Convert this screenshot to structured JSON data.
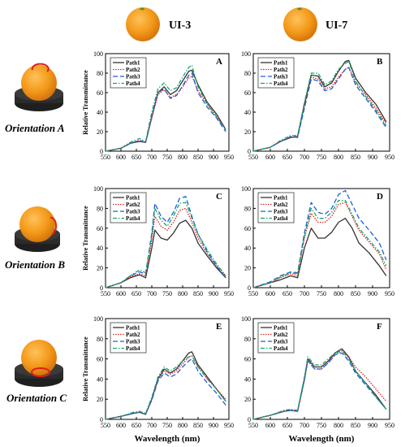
{
  "columns": [
    "UI-3",
    "UI-7"
  ],
  "rows": [
    "Orientation A",
    "Orientation B",
    "Orientation C"
  ],
  "legend": [
    "Path1",
    "Path2",
    "Path3",
    "Path4"
  ],
  "colors": {
    "Path1": "#333333",
    "Path2": "#e02020",
    "Path3": "#1f5fd6",
    "Path4": "#15a86a",
    "orange": "#f39a1a",
    "stand": "#2b2b2b",
    "marker": "#e0201a"
  },
  "chart_data": [
    {
      "type": "line",
      "panel": "A",
      "column": "UI-3",
      "row": "Orientation A",
      "xlabel": "",
      "ylabel": "Relative Transmittance",
      "xlim": [
        550,
        950
      ],
      "ylim": [
        0,
        100
      ],
      "xticks": [
        550,
        600,
        650,
        700,
        750,
        800,
        850,
        900,
        950
      ],
      "yticks": [
        0,
        20,
        40,
        60,
        80,
        100
      ],
      "legend_position": "top-left",
      "x": [
        550,
        600,
        630,
        660,
        680,
        700,
        720,
        740,
        760,
        780,
        800,
        820,
        830,
        850,
        880,
        910,
        940
      ],
      "series": [
        {
          "name": "Path1",
          "values": [
            0,
            3,
            8,
            10,
            9,
            35,
            60,
            66,
            58,
            62,
            72,
            82,
            83,
            68,
            50,
            38,
            22
          ]
        },
        {
          "name": "Path2",
          "values": [
            0,
            3,
            8,
            11,
            9,
            34,
            58,
            63,
            55,
            58,
            66,
            75,
            77,
            62,
            48,
            36,
            22
          ]
        },
        {
          "name": "Path3",
          "values": [
            0,
            3,
            8,
            11,
            9,
            36,
            60,
            64,
            54,
            57,
            67,
            78,
            80,
            60,
            45,
            34,
            20
          ]
        },
        {
          "name": "Path4",
          "values": [
            0,
            3,
            9,
            13,
            10,
            40,
            64,
            70,
            62,
            65,
            76,
            86,
            88,
            66,
            48,
            35,
            22
          ]
        }
      ]
    },
    {
      "type": "line",
      "panel": "B",
      "column": "UI-7",
      "row": "Orientation A",
      "xlabel": "",
      "ylabel": "",
      "xlim": [
        550,
        950
      ],
      "ylim": [
        0,
        100
      ],
      "xticks": [
        550,
        600,
        650,
        700,
        750,
        800,
        850,
        900,
        950
      ],
      "yticks": [
        0,
        20,
        40,
        60,
        80,
        100
      ],
      "legend_position": "top-right",
      "x": [
        550,
        600,
        630,
        660,
        680,
        700,
        720,
        740,
        760,
        780,
        800,
        820,
        830,
        850,
        880,
        910,
        940
      ],
      "series": [
        {
          "name": "Path1",
          "values": [
            0,
            4,
            10,
            14,
            15,
            48,
            78,
            77,
            66,
            70,
            82,
            92,
            93,
            75,
            60,
            48,
            30
          ]
        },
        {
          "name": "Path2",
          "values": [
            0,
            4,
            10,
            14,
            15,
            46,
            76,
            74,
            64,
            66,
            76,
            84,
            86,
            70,
            58,
            44,
            28
          ]
        },
        {
          "name": "Path3",
          "values": [
            0,
            4,
            10,
            15,
            14,
            44,
            74,
            72,
            62,
            64,
            74,
            84,
            86,
            68,
            54,
            40,
            24
          ]
        },
        {
          "name": "Path4",
          "values": [
            0,
            4,
            11,
            16,
            16,
            50,
            80,
            80,
            68,
            72,
            84,
            90,
            92,
            72,
            56,
            42,
            26
          ]
        }
      ]
    },
    {
      "type": "line",
      "panel": "C",
      "column": "UI-3",
      "row": "Orientation B",
      "xlabel": "",
      "ylabel": "Relative Transmittance",
      "xlim": [
        550,
        950
      ],
      "ylim": [
        0,
        100
      ],
      "xticks": [
        550,
        600,
        650,
        700,
        750,
        800,
        850,
        900,
        950
      ],
      "yticks": [
        0,
        20,
        40,
        60,
        80,
        100
      ],
      "legend_position": "top-left",
      "x": [
        550,
        600,
        630,
        660,
        680,
        700,
        710,
        730,
        750,
        770,
        790,
        810,
        830,
        850,
        880,
        910,
        940
      ],
      "series": [
        {
          "name": "Path1",
          "values": [
            0,
            5,
            10,
            13,
            10,
            40,
            58,
            50,
            48,
            55,
            65,
            68,
            60,
            45,
            32,
            20,
            10
          ]
        },
        {
          "name": "Path2",
          "values": [
            0,
            5,
            11,
            14,
            12,
            48,
            72,
            62,
            58,
            66,
            78,
            80,
            66,
            50,
            34,
            22,
            12
          ]
        },
        {
          "name": "Path3",
          "values": [
            0,
            5,
            12,
            16,
            14,
            55,
            85,
            72,
            66,
            76,
            90,
            92,
            72,
            54,
            36,
            22,
            10
          ]
        },
        {
          "name": "Path4",
          "values": [
            0,
            5,
            12,
            18,
            15,
            52,
            80,
            68,
            62,
            72,
            85,
            86,
            70,
            54,
            38,
            24,
            12
          ]
        }
      ]
    },
    {
      "type": "line",
      "panel": "D",
      "column": "UI-7",
      "row": "Orientation B",
      "xlabel": "",
      "ylabel": "",
      "xlim": [
        550,
        950
      ],
      "ylim": [
        0,
        100
      ],
      "xticks": [
        550,
        600,
        650,
        700,
        750,
        800,
        850,
        900,
        950
      ],
      "yticks": [
        0,
        20,
        40,
        60,
        80,
        100
      ],
      "legend_position": "top-right",
      "x": [
        550,
        600,
        630,
        660,
        680,
        700,
        720,
        740,
        760,
        780,
        800,
        820,
        840,
        860,
        890,
        920,
        940
      ],
      "series": [
        {
          "name": "Path1",
          "values": [
            0,
            5,
            8,
            12,
            10,
            40,
            60,
            50,
            50,
            56,
            66,
            70,
            60,
            45,
            35,
            22,
            12
          ]
        },
        {
          "name": "Path2",
          "values": [
            0,
            5,
            10,
            14,
            12,
            50,
            75,
            66,
            66,
            72,
            84,
            86,
            72,
            58,
            46,
            34,
            18
          ]
        },
        {
          "name": "Path3",
          "values": [
            0,
            6,
            12,
            16,
            15,
            55,
            86,
            76,
            74,
            80,
            94,
            98,
            84,
            70,
            58,
            45,
            28
          ]
        },
        {
          "name": "Path4",
          "values": [
            0,
            5,
            11,
            15,
            14,
            52,
            80,
            70,
            70,
            76,
            88,
            88,
            74,
            60,
            48,
            36,
            22
          ]
        }
      ]
    },
    {
      "type": "line",
      "panel": "E",
      "column": "UI-3",
      "row": "Orientation C",
      "xlabel": "Wavelength (nm)",
      "ylabel": "Relative Transmittance",
      "xlim": [
        550,
        950
      ],
      "ylim": [
        0,
        100
      ],
      "xticks": [
        550,
        600,
        650,
        700,
        750,
        800,
        850,
        900,
        950
      ],
      "yticks": [
        0,
        20,
        40,
        60,
        80,
        100
      ],
      "legend_position": "top-left",
      "x": [
        550,
        600,
        640,
        660,
        680,
        700,
        720,
        740,
        760,
        780,
        800,
        820,
        830,
        850,
        880,
        910,
        940
      ],
      "series": [
        {
          "name": "Path1",
          "values": [
            0,
            3,
            6,
            7,
            5,
            20,
            40,
            50,
            46,
            50,
            58,
            66,
            67,
            54,
            42,
            30,
            18
          ]
        },
        {
          "name": "Path2",
          "values": [
            0,
            3,
            6,
            7,
            5,
            20,
            40,
            48,
            45,
            48,
            55,
            62,
            63,
            52,
            40,
            30,
            20
          ]
        },
        {
          "name": "Path3",
          "values": [
            0,
            3,
            6,
            7,
            5,
            19,
            38,
            46,
            42,
            45,
            52,
            58,
            60,
            48,
            36,
            26,
            14
          ]
        },
        {
          "name": "Path4",
          "values": [
            0,
            3,
            7,
            8,
            6,
            22,
            42,
            52,
            48,
            52,
            58,
            62,
            63,
            52,
            40,
            30,
            18
          ]
        }
      ]
    },
    {
      "type": "line",
      "panel": "F",
      "column": "UI-7",
      "row": "Orientation C",
      "xlabel": "Wavelength (nm)",
      "ylabel": "",
      "xlim": [
        550,
        950
      ],
      "ylim": [
        0,
        100
      ],
      "xticks": [
        550,
        600,
        650,
        700,
        750,
        800,
        850,
        900,
        950
      ],
      "yticks": [
        0,
        20,
        40,
        60,
        80,
        100
      ],
      "legend_position": "top-right",
      "x": [
        550,
        600,
        640,
        660,
        680,
        700,
        710,
        730,
        750,
        770,
        790,
        810,
        830,
        850,
        880,
        910,
        940
      ],
      "series": [
        {
          "name": "Path1",
          "values": [
            0,
            4,
            8,
            9,
            8,
            40,
            60,
            52,
            52,
            58,
            66,
            70,
            62,
            48,
            36,
            24,
            10
          ]
        },
        {
          "name": "Path2",
          "values": [
            0,
            4,
            8,
            9,
            8,
            38,
            58,
            50,
            50,
            56,
            64,
            68,
            62,
            52,
            42,
            30,
            18
          ]
        },
        {
          "name": "Path3",
          "values": [
            0,
            4,
            8,
            9,
            8,
            40,
            58,
            50,
            50,
            56,
            64,
            66,
            58,
            46,
            34,
            22,
            10
          ]
        },
        {
          "name": "Path4",
          "values": [
            0,
            4,
            9,
            10,
            9,
            42,
            62,
            54,
            54,
            60,
            66,
            68,
            60,
            48,
            36,
            22,
            10
          ]
        }
      ]
    }
  ]
}
